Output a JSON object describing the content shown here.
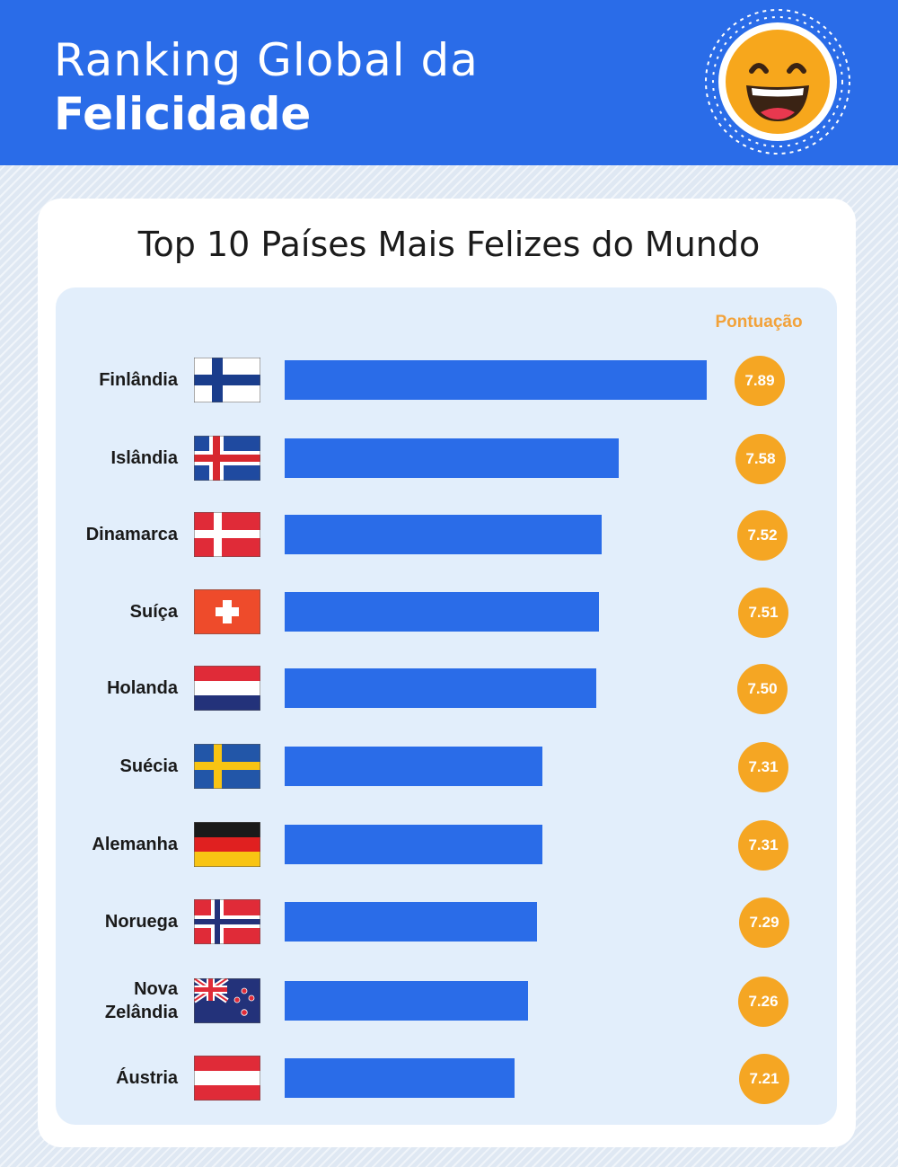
{
  "header": {
    "title_line1": "Ranking Global da",
    "title_line2": "Felicidade",
    "badge_icon": "laughing-face-icon"
  },
  "colors": {
    "header_bg": "#2a6ce8",
    "bar": "#2a6ce8",
    "score_circle": "#f5a623",
    "score_header": "#f2a23a",
    "panel_bg": "#e2eefb"
  },
  "chart_data": {
    "type": "bar",
    "orientation": "horizontal",
    "title": "Top 10 Países Mais Felizes do Mundo",
    "value_header": "Pontuação",
    "categories": [
      "Finlândia",
      "Islândia",
      "Dinamarca",
      "Suíça",
      "Holanda",
      "Suécia",
      "Alemanha",
      "Noruega",
      "Nova\nZelândia",
      "Áustria"
    ],
    "values": [
      7.89,
      7.58,
      7.52,
      7.51,
      7.5,
      7.31,
      7.31,
      7.29,
      7.26,
      7.21
    ],
    "value_labels": [
      "7.89",
      "7.58",
      "7.52",
      "7.51",
      "7.50",
      "7.31",
      "7.31",
      "7.29",
      "7.26",
      "7.21"
    ],
    "flags": [
      "finland",
      "iceland",
      "denmark",
      "switzerland",
      "netherlands",
      "sweden",
      "germany",
      "norway",
      "new-zealand",
      "austria"
    ],
    "legend": "none",
    "grid": false
  }
}
